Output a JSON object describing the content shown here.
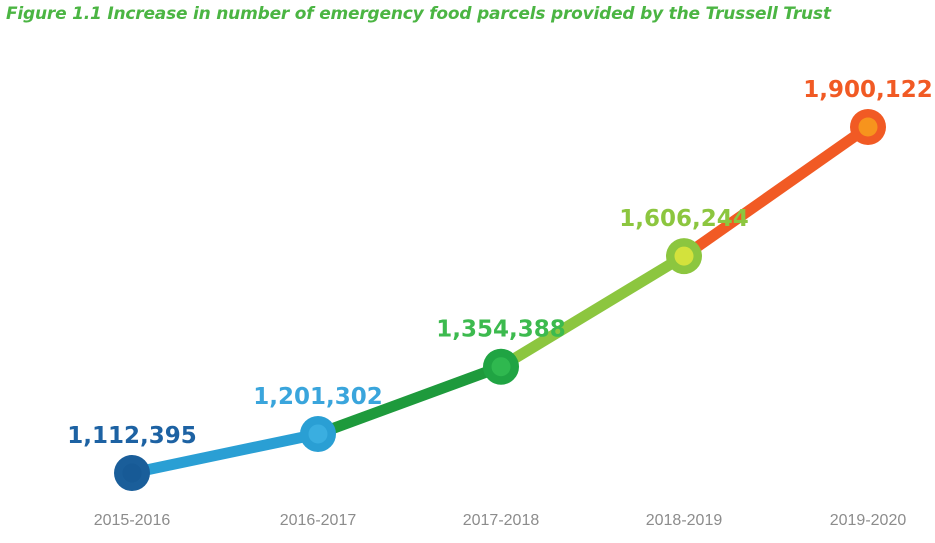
{
  "chart_data": {
    "type": "line",
    "title": "Figure 1.1 Increase in number of emergency food parcels provided by the Trussell Trust",
    "title_color": "#4bb543",
    "categories": [
      "2015-2016",
      "2016-2017",
      "2017-2018",
      "2018-2019",
      "2019-2020"
    ],
    "values": [
      1112395,
      1201302,
      1354388,
      1606244,
      1900122
    ],
    "data_labels": [
      "1,112,395",
      "1,201,302",
      "1,354,388",
      "1,606,244",
      "1,900,122"
    ],
    "point_colors": [
      {
        "ring": "#1a5e9a",
        "center": "#175a96",
        "label": "#1d62a3"
      },
      {
        "ring": "#2a9fd4",
        "center": "#3aaee0",
        "label": "#3aa5dc"
      },
      {
        "ring": "#20a443",
        "center": "#2fb84f",
        "label": "#3cba4e"
      },
      {
        "ring": "#8cc63f",
        "center": "#d3e23c",
        "label": "#8cc63f"
      },
      {
        "ring": "#f15a24",
        "center": "#f7941d",
        "label": "#f15a24"
      }
    ],
    "segment_colors": [
      "#2a9fd4",
      "#1e9a3c",
      "#8cc63f",
      "#f15a24"
    ],
    "tick_color": "#8c8c8c",
    "xlabel": "",
    "ylabel": "",
    "grid": false,
    "legend": "none"
  }
}
